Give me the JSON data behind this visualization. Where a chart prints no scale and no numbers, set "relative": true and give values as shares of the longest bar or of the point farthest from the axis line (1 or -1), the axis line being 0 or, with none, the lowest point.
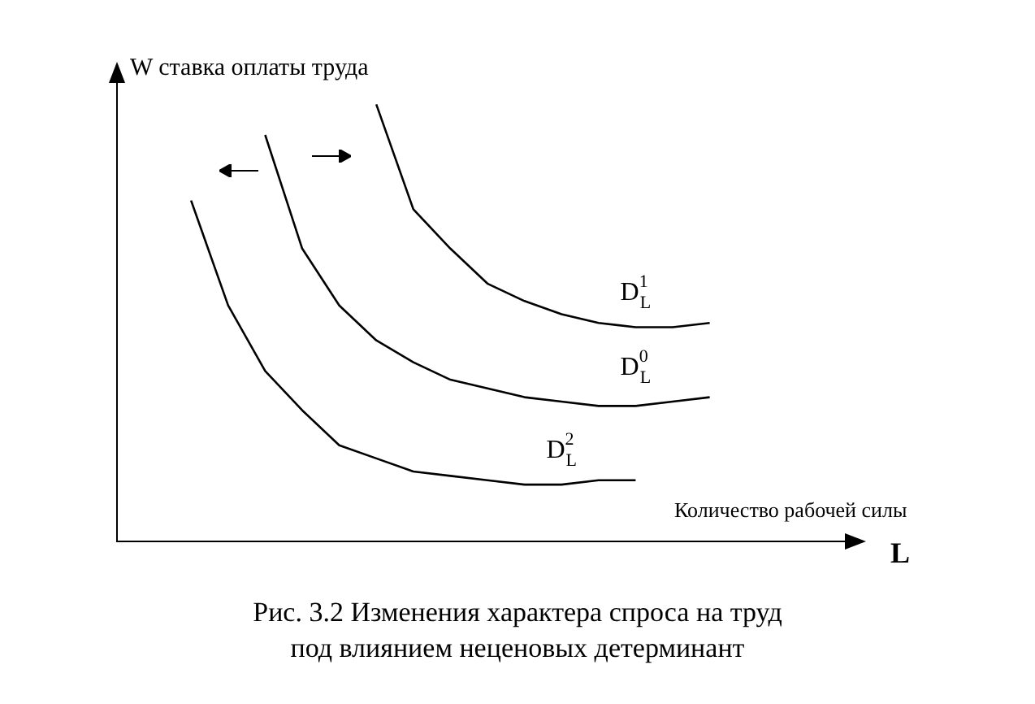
{
  "chart_data": {
    "type": "line",
    "relative": true,
    "title": "Рис. 3.2 Изменения характера спроса на труд под влиянием неценовых детерминант",
    "ylabel": "W ставка оплаты труда",
    "xlabel": "L",
    "annotations": [
      "Количество рабочей силы"
    ],
    "grid": false,
    "legend": false,
    "marker": "none",
    "line_style": "solid",
    "categories": [
      null,
      null,
      null,
      null,
      null,
      null,
      null,
      null,
      null,
      null,
      null,
      null,
      null,
      null,
      null,
      null,
      null,
      null,
      null,
      null,
      null
    ],
    "series": [
      {
        "name": "D$^{1}$$_{L}$",
        "color": "#000000",
        "values": [
          null,
          null,
          null,
          null,
          null,
          null,
          null,
          1.0,
          0.76,
          0.67,
          0.59,
          0.55,
          0.52,
          0.5,
          0.49,
          0.49,
          0.5,
          null,
          null,
          null,
          null
        ]
      },
      {
        "name": "D$^{0}$$_{L}$",
        "color": "#000000",
        "values": [
          null,
          null,
          null,
          null,
          0.93,
          0.67,
          0.54,
          0.46,
          0.41,
          0.37,
          0.35,
          0.33,
          0.32,
          0.31,
          0.31,
          0.32,
          0.33,
          null,
          null,
          null,
          null
        ]
      },
      {
        "name": "D$^{2}$$_{L}$",
        "color": "#000000",
        "values": [
          null,
          null,
          0.78,
          0.54,
          0.39,
          0.3,
          0.22,
          0.19,
          0.16,
          0.15,
          0.14,
          0.13,
          0.13,
          0.14,
          0.14,
          null,
          null,
          null,
          null,
          null,
          null
        ]
      }
    ]
  }
}
